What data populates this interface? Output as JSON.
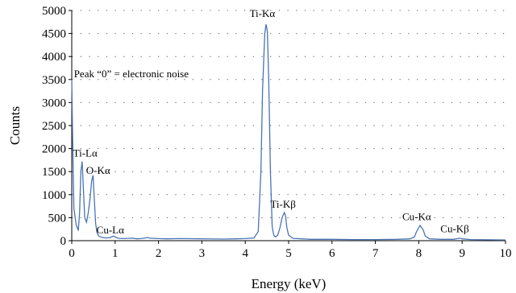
{
  "chart_data": {
    "type": "line",
    "title": "",
    "xlabel": "Energy (keV)",
    "ylabel": "Counts",
    "xlim": [
      0,
      10
    ],
    "ylim": [
      0,
      5000
    ],
    "xticks": [
      0,
      1,
      2,
      3,
      4,
      5,
      6,
      7,
      8,
      9,
      10
    ],
    "yticks": [
      0,
      500,
      1000,
      1500,
      2000,
      2500,
      3000,
      3500,
      4000,
      4500,
      5000
    ],
    "grid": "dotted",
    "legend": "none",
    "colors": {
      "line": "#4a74b4",
      "axis": "#000000",
      "grid": "#555555"
    },
    "series": [
      {
        "x": [
          0,
          0.02,
          0.05,
          0.1,
          0.15,
          0.18,
          0.21,
          0.24,
          0.27,
          0.3,
          0.34,
          0.38,
          0.42,
          0.46,
          0.49,
          0.52,
          0.55,
          0.58,
          0.62,
          0.7,
          0.8,
          0.9,
          0.93,
          0.97,
          1.0,
          1.05,
          1.1,
          1.2,
          1.3,
          1.4,
          1.5,
          1.6,
          1.7,
          1.75,
          1.8,
          1.9,
          2.0,
          2.2,
          2.5,
          3.0,
          3.5,
          3.8,
          4.0,
          4.2,
          4.3,
          4.36,
          4.4,
          4.45,
          4.48,
          4.51,
          4.54,
          4.58,
          4.62,
          4.66,
          4.7,
          4.75,
          4.8,
          4.85,
          4.9,
          4.93,
          4.96,
          5.0,
          5.1,
          5.3,
          5.5,
          6.0,
          6.5,
          7.0,
          7.5,
          7.8,
          7.9,
          7.95,
          8.03,
          8.1,
          8.15,
          8.25,
          8.5,
          8.8,
          8.9,
          8.95,
          9.0,
          9.2,
          9.6,
          10.0
        ],
        "y": [
          3500,
          2200,
          700,
          350,
          220,
          600,
          1500,
          1720,
          1100,
          500,
          400,
          600,
          900,
          1300,
          1420,
          900,
          380,
          180,
          100,
          70,
          60,
          70,
          90,
          100,
          80,
          60,
          50,
          45,
          50,
          55,
          40,
          45,
          60,
          70,
          55,
          50,
          45,
          40,
          45,
          40,
          35,
          40,
          45,
          60,
          200,
          1500,
          3300,
          4500,
          4700,
          4550,
          3500,
          1500,
          300,
          110,
          80,
          120,
          280,
          500,
          610,
          540,
          280,
          120,
          50,
          40,
          30,
          30,
          25,
          25,
          30,
          40,
          80,
          200,
          330,
          240,
          100,
          40,
          30,
          30,
          45,
          55,
          40,
          25,
          20,
          15
        ]
      }
    ],
    "annotations": [
      {
        "text": "Peak “0” = electronic noise",
        "x": 0.05,
        "y": 3550
      },
      {
        "text": "Ti-Lα",
        "x": 0.03,
        "y": 1830
      },
      {
        "text": "O-Kα",
        "x": 0.33,
        "y": 1450
      },
      {
        "text": "Cu-Lα",
        "x": 0.57,
        "y": 160
      },
      {
        "text": "Ti-Kα",
        "x": 4.1,
        "y": 4860
      },
      {
        "text": "Ti-Kβ",
        "x": 4.58,
        "y": 720
      },
      {
        "text": "Cu-Kα",
        "x": 7.62,
        "y": 450
      },
      {
        "text": "Cu-Kβ",
        "x": 8.5,
        "y": 180
      }
    ]
  }
}
